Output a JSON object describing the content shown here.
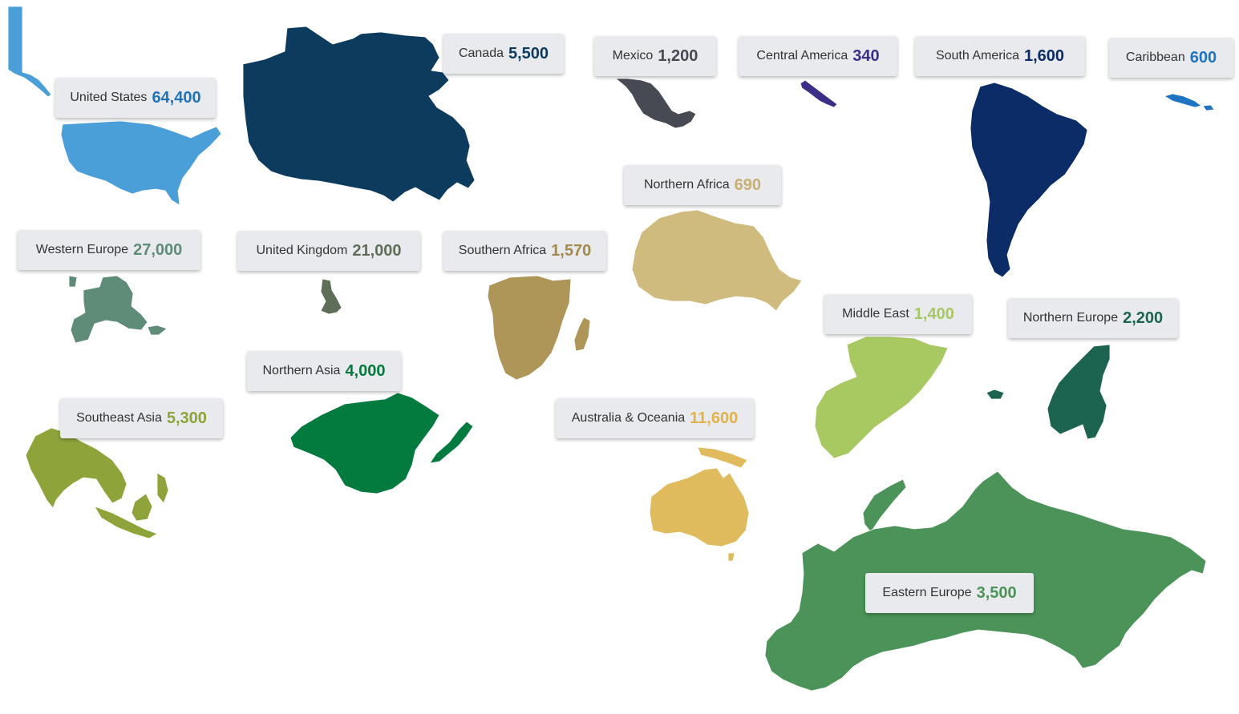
{
  "map_data": {
    "type": "choropleth-callouts",
    "regions": [
      {
        "id": "united-states",
        "name": "United States",
        "value": "64,400",
        "color": "#4a9fd8",
        "value_color": "#2272b8"
      },
      {
        "id": "canada",
        "name": "Canada",
        "value": "5,500",
        "color": "#0c3b5e",
        "value_color": "#0c3b5e"
      },
      {
        "id": "mexico",
        "name": "Mexico",
        "value": "1,200",
        "color": "#474a52",
        "value_color": "#474a52"
      },
      {
        "id": "central-america",
        "name": "Central America",
        "value": "340",
        "color": "#3a2e86",
        "value_color": "#3a2e86"
      },
      {
        "id": "south-america",
        "name": "South America",
        "value": "1,600",
        "color": "#0b2c66",
        "value_color": "#0b2c66"
      },
      {
        "id": "caribbean",
        "name": "Caribbean",
        "value": "600",
        "color": "#1e74c0",
        "value_color": "#1e74c0"
      },
      {
        "id": "western-europe",
        "name": "Western Europe",
        "value": "27,000",
        "color": "#5e8c79",
        "value_color": "#5e8c79"
      },
      {
        "id": "united-kingdom",
        "name": "United Kingdom",
        "value": "21,000",
        "color": "#5f6e58",
        "value_color": "#5f6e58"
      },
      {
        "id": "southern-africa",
        "name": "Southern Africa",
        "value": "1,570",
        "color": "#ae9558",
        "value_color": "#a38a4a"
      },
      {
        "id": "northern-africa",
        "name": "Northern Africa",
        "value": "690",
        "color": "#d0bb7e",
        "value_color": "#c8b072"
      },
      {
        "id": "middle-east",
        "name": "Middle East",
        "value": "1,400",
        "color": "#a8c862",
        "value_color": "#a8c862"
      },
      {
        "id": "northern-europe",
        "name": "Northern Europe",
        "value": "2,200",
        "color": "#1d6450",
        "value_color": "#1d6450"
      },
      {
        "id": "northern-asia",
        "name": "Northern Asia",
        "value": "4,000",
        "color": "#037a3e",
        "value_color": "#037a3e"
      },
      {
        "id": "southeast-asia",
        "name": "Southeast Asia",
        "value": "5,300",
        "color": "#8ea43a",
        "value_color": "#8ea43a"
      },
      {
        "id": "australia-oceania",
        "name": "Australia & Oceania",
        "value": "11,600",
        "color": "#dfbb5e",
        "value_color": "#e0b34c"
      },
      {
        "id": "eastern-europe",
        "name": "Eastern Europe",
        "value": "3,500",
        "color": "#4b9358",
        "value_color": "#4b9358"
      }
    ]
  }
}
